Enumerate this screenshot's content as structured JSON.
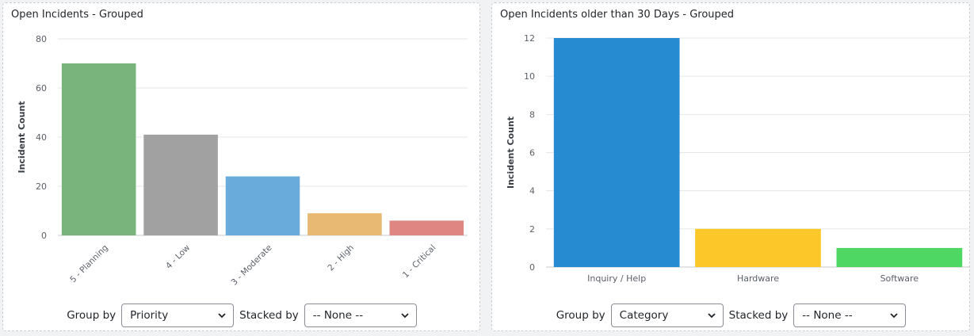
{
  "colors": {
    "grid": "#e5e6e8",
    "axis": "#c7c9cc",
    "tick_text": "#5b6068"
  },
  "chart_data": [
    {
      "type": "bar",
      "title": "Open Incidents - Grouped",
      "ylabel": "Incident Count",
      "xlabel": "",
      "ylim": [
        0,
        80
      ],
      "yticks": [
        0,
        20,
        40,
        60,
        80
      ],
      "categories": [
        "5 - Planning",
        "4 - Low",
        "3 - Moderate",
        "2 - High",
        "1 - Critical"
      ],
      "values": [
        70,
        41,
        24,
        9,
        6
      ],
      "bar_colors": [
        "#79b47c",
        "#a1a1a1",
        "#69abdb",
        "#e8b972",
        "#df8682"
      ],
      "tick_label_rotation": -45,
      "grid": true
    },
    {
      "type": "bar",
      "title": "Open Incidents older than 30 Days - Grouped",
      "ylabel": "Incident Count",
      "xlabel": "",
      "ylim": [
        0,
        12
      ],
      "yticks": [
        0,
        2,
        4,
        6,
        8,
        10,
        12
      ],
      "categories": [
        "Inquiry / Help",
        "Hardware",
        "Software"
      ],
      "values": [
        12,
        2,
        1
      ],
      "bar_colors": [
        "#278bd1",
        "#fcc728",
        "#4ed863"
      ],
      "tick_label_rotation": 0,
      "grid": true
    }
  ],
  "left_controls": {
    "group_by_label": "Group by",
    "group_by_value": "Priority",
    "stacked_by_label": "Stacked by",
    "stacked_by_value": "-- None --"
  },
  "right_controls": {
    "group_by_label": "Group by",
    "group_by_value": "Category",
    "stacked_by_label": "Stacked by",
    "stacked_by_value": "-- None --"
  }
}
